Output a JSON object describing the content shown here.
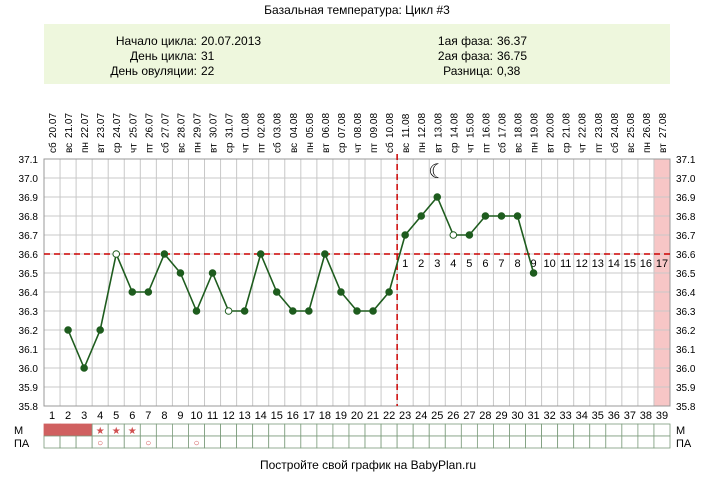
{
  "chart_data": {
    "type": "line",
    "title": "Базальная температура: Цикл #3",
    "info": {
      "left_labels": [
        "Начало цикла:",
        "День цикла:",
        "День овуляции:"
      ],
      "left_values": [
        "20.07.2013",
        "31",
        "22"
      ],
      "right_labels": [
        "1ая фаза:",
        "2ая фаза:",
        "Разница:"
      ],
      "right_values": [
        "36.37",
        "36.75",
        "0,38"
      ]
    },
    "weekdays": [
      "сб",
      "вс",
      "пн",
      "вт",
      "ср",
      "чт",
      "пт",
      "сб",
      "вс",
      "пн",
      "вт",
      "ср",
      "чт",
      "пт",
      "сб",
      "вс",
      "пн",
      "вт",
      "ср",
      "чт",
      "пт",
      "сб",
      "вс",
      "пн",
      "вт",
      "ср",
      "чт",
      "пт",
      "сб",
      "вс",
      "пн",
      "вт",
      "ср",
      "чт",
      "пт",
      "сб",
      "вс",
      "пн",
      "вт"
    ],
    "dates": [
      "20.07",
      "21.07",
      "22.07",
      "23.07",
      "24.07",
      "25.07",
      "26.07",
      "27.07",
      "28.07",
      "29.07",
      "30.07",
      "31.07",
      "01.08",
      "02.08",
      "03.08",
      "04.08",
      "05.08",
      "06.08",
      "07.08",
      "08.08",
      "09.08",
      "10.08",
      "11.08",
      "12.08",
      "13.08",
      "14.08",
      "15.08",
      "16.08",
      "17.08",
      "18.08",
      "19.08",
      "20.08",
      "21.08",
      "22.08",
      "23.08",
      "24.08",
      "25.08",
      "26.08",
      "27.08"
    ],
    "days": [
      "1",
      "2",
      "3",
      "4",
      "5",
      "6",
      "7",
      "8",
      "9",
      "10",
      "11",
      "12",
      "13",
      "14",
      "15",
      "16",
      "17",
      "18",
      "19",
      "20",
      "21",
      "22",
      "23",
      "24",
      "25",
      "26",
      "27",
      "28",
      "29",
      "30",
      "31",
      "32",
      "33",
      "34",
      "35",
      "36",
      "37",
      "38",
      "39"
    ],
    "y_ticks": [
      "37.1",
      "37.0",
      "36.9",
      "36.8",
      "36.7",
      "36.6",
      "36.5",
      "36.4",
      "36.3",
      "36.2",
      "36.1",
      "36.0",
      "35.9",
      "35.8"
    ],
    "ylim": [
      35.8,
      37.1
    ],
    "series": [
      {
        "values": [
          null,
          36.2,
          36.0,
          36.2,
          36.6,
          36.4,
          36.4,
          36.6,
          36.5,
          36.3,
          36.5,
          36.3,
          36.3,
          36.6,
          36.4,
          36.3,
          36.3,
          36.6,
          36.4,
          36.3,
          36.3,
          36.4,
          36.7,
          36.8,
          36.9,
          36.7,
          36.7,
          36.8,
          36.8,
          36.8,
          36.5,
          null,
          null,
          null,
          null,
          null,
          null,
          null,
          null
        ],
        "hollow_days": [
          5,
          12,
          26
        ]
      }
    ],
    "coverline": 36.6,
    "ovulation_day": 22,
    "luteal_labels": [
      "1",
      "2",
      "3",
      "4",
      "5",
      "6",
      "7",
      "8",
      "9",
      "10",
      "11",
      "12",
      "13",
      "14",
      "15",
      "16",
      "17"
    ],
    "luteal_start_day": 23,
    "highlight_day": 39,
    "rows": {
      "m_label": "М",
      "pa_label": "ПА",
      "m_filled_days": [
        1,
        2,
        3
      ],
      "m_star_days": [
        4,
        5,
        6
      ],
      "pa_circle_days": [
        4,
        7,
        10
      ]
    },
    "symbols": {
      "moon": "☾",
      "star": "★",
      "circle": "○"
    },
    "colors": {
      "line": "#1e5c1e",
      "coverline": "#cc0000",
      "header_bg": "#eef7dd",
      "highlight": "#f7c6c6",
      "m_fill": "#d06060"
    },
    "footer": "Постройте свой график на BabyPlan.ru"
  }
}
